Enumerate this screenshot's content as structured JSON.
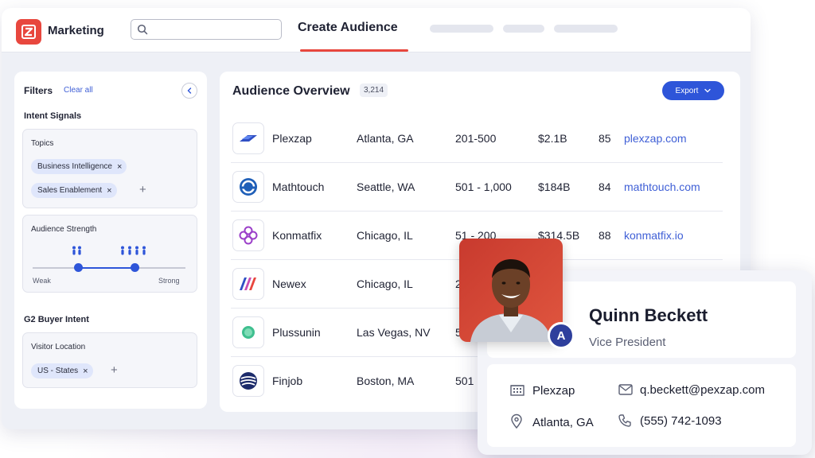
{
  "app": {
    "brand": "Marketing",
    "active_tab": "Create Audience"
  },
  "filters": {
    "title": "Filters",
    "clear_all": "Clear all",
    "intent_signals": {
      "title": "Intent Signals",
      "topics_label": "Topics",
      "topics": [
        "Business Intelligence",
        "Sales Enablement"
      ],
      "audience_strength_label": "Audience Strength",
      "strength_min_label": "Weak",
      "strength_max_label": "Strong",
      "strength_range": [
        0.3,
        0.67
      ]
    },
    "g2_buyer_intent": {
      "title": "G2 Buyer Intent",
      "visitor_location_label": "Visitor Location",
      "locations": [
        "US - States"
      ]
    }
  },
  "overview": {
    "title": "Audience Overview",
    "count": "3,214",
    "export_label": "Export",
    "rows": [
      {
        "company": "Plexzap",
        "location": "Atlanta, GA",
        "employees": "201-500",
        "revenue": "$2.1B",
        "score": "85",
        "domain": "plexzap.com",
        "logo": "plexzap-logo-icon"
      },
      {
        "company": "Mathtouch",
        "location": "Seattle, WA",
        "employees": "501 - 1,000",
        "revenue": "$184B",
        "score": "84",
        "domain": "mathtouch.com",
        "logo": "mathtouch-logo-icon"
      },
      {
        "company": "Konmatfix",
        "location": "Chicago, IL",
        "employees": "51 - 200",
        "revenue": "$314.5B",
        "score": "88",
        "domain": "konmatfix.io",
        "logo": "konmatfix-logo-icon"
      },
      {
        "company": "Newex",
        "location": "Chicago, IL",
        "employees": "2",
        "revenue": "",
        "score": "",
        "domain": "",
        "logo": "newex-logo-icon"
      },
      {
        "company": "Plussunin",
        "location": "Las Vegas, NV",
        "employees": "5",
        "revenue": "",
        "score": "",
        "domain": "",
        "logo": "plussunin-logo-icon"
      },
      {
        "company": "Finjob",
        "location": "Boston, MA",
        "employees": "501",
        "revenue": "",
        "score": "",
        "domain": "",
        "logo": "finjob-logo-icon"
      }
    ]
  },
  "profile": {
    "name": "Quinn Beckett",
    "title": "Vice President",
    "avatar_initial": "A",
    "company": "Plexzap",
    "location": "Atlanta, GA",
    "email": "q.beckett@pexzap.com",
    "phone": "(555) 742-1093"
  },
  "colors": {
    "accent": "#2e55d9",
    "brand_red": "#e8473e",
    "link": "#3f5fd6"
  }
}
